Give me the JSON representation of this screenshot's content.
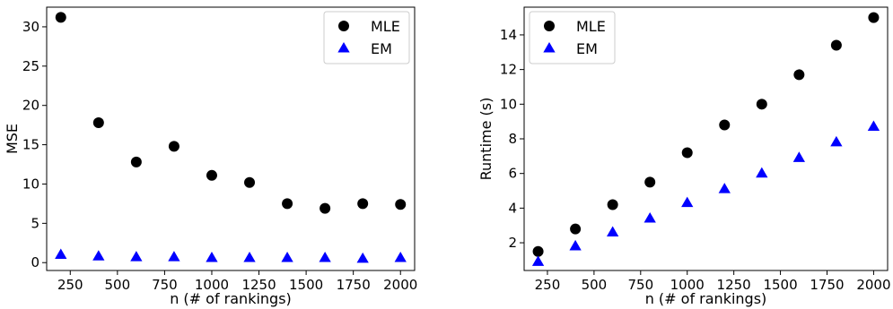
{
  "chart_data": [
    {
      "type": "scatter",
      "xlabel": "n (# of rankings)",
      "ylabel": "MSE",
      "xlim": [
        125,
        2075
      ],
      "ylim": [
        -1,
        32.5
      ],
      "xticks": [
        250,
        500,
        750,
        1000,
        1250,
        1500,
        1750,
        2000
      ],
      "yticks": [
        0,
        5,
        10,
        15,
        20,
        25,
        30
      ],
      "legend_position": "top-right",
      "grid": false,
      "series": [
        {
          "name": "MLE",
          "marker": "circle",
          "color": "#000000",
          "x": [
            200,
            400,
            600,
            800,
            1000,
            1200,
            1400,
            1600,
            1800,
            2000
          ],
          "y": [
            31.2,
            17.8,
            12.8,
            14.8,
            11.1,
            10.2,
            7.5,
            6.9,
            7.5,
            7.4
          ]
        },
        {
          "name": "EM",
          "marker": "triangle",
          "color": "#0000ff",
          "x": [
            200,
            400,
            600,
            800,
            1000,
            1200,
            1400,
            1600,
            1800,
            2000
          ],
          "y": [
            1.0,
            0.8,
            0.7,
            0.7,
            0.6,
            0.6,
            0.6,
            0.6,
            0.5,
            0.6
          ]
        }
      ]
    },
    {
      "type": "scatter",
      "xlabel": "n (# of rankings)",
      "ylabel": "Runtime (s)",
      "xlim": [
        125,
        2075
      ],
      "ylim": [
        0.4,
        15.6
      ],
      "xticks": [
        250,
        500,
        750,
        1000,
        1250,
        1500,
        1750,
        2000
      ],
      "yticks": [
        2,
        4,
        6,
        8,
        10,
        12,
        14
      ],
      "legend_position": "top-left",
      "grid": false,
      "series": [
        {
          "name": "MLE",
          "marker": "circle",
          "color": "#000000",
          "x": [
            200,
            400,
            600,
            800,
            1000,
            1200,
            1400,
            1600,
            1800,
            2000
          ],
          "y": [
            1.5,
            2.8,
            4.2,
            5.5,
            7.2,
            8.8,
            10.0,
            11.7,
            13.4,
            15.0
          ]
        },
        {
          "name": "EM",
          "marker": "triangle",
          "color": "#0000ff",
          "x": [
            200,
            400,
            600,
            800,
            1000,
            1200,
            1400,
            1600,
            1800,
            2000
          ],
          "y": [
            0.9,
            1.8,
            2.6,
            3.4,
            4.3,
            5.1,
            6.0,
            6.9,
            7.8,
            8.7
          ]
        }
      ]
    }
  ]
}
